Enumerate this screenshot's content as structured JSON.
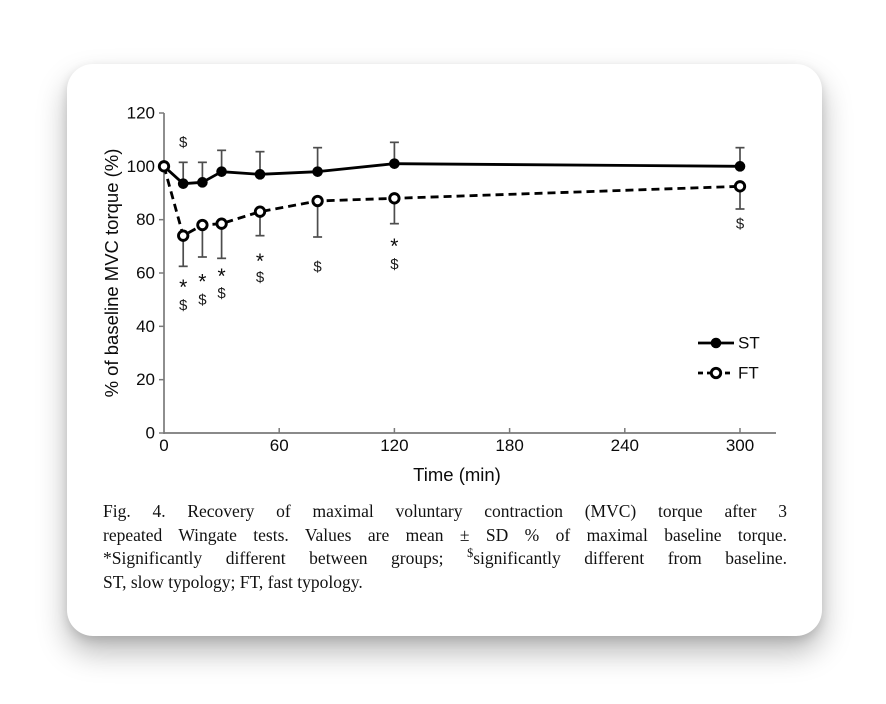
{
  "figure": {
    "caption": {
      "line1": "Fig. 4. Recovery of maximal voluntary contraction (MVC) torque after 3",
      "line2": "repeated Wingate tests. Values are mean ± SD % of maximal baseline torque.",
      "line3_pre": "*Significantly different between groups; ",
      "line3_sup": "$",
      "line3_post": "significantly different from baseline.",
      "line4": "ST, slow typology; FT, fast typology."
    }
  },
  "chart_data": {
    "type": "line",
    "title": "",
    "xlabel": "Time (min)",
    "ylabel": "% of baseline MVC torque (%)",
    "xlim": [
      0,
      320
    ],
    "ylim": [
      0,
      120
    ],
    "xticks": [
      0,
      60,
      120,
      180,
      240,
      300
    ],
    "yticks": [
      0,
      20,
      40,
      60,
      80,
      100,
      120
    ],
    "grid": false,
    "legend_position": "right-middle",
    "x": [
      0,
      10,
      20,
      30,
      50,
      80,
      120,
      300
    ],
    "series": [
      {
        "name": "ST",
        "line_style": "solid",
        "marker": "filled-circle",
        "values": [
          100,
          93.5,
          94,
          98,
          97,
          98,
          101,
          100
        ],
        "err_up": [
          0,
          8,
          7.5,
          8,
          8.5,
          9,
          8,
          7
        ],
        "err_down": [
          0,
          0,
          0,
          0,
          0,
          0,
          0,
          0
        ]
      },
      {
        "name": "FT",
        "line_style": "dashed",
        "marker": "open-circle",
        "values": [
          100,
          74,
          78,
          78.5,
          83,
          87,
          88,
          92.5
        ],
        "err_up": [
          0,
          0,
          0,
          0,
          0,
          0,
          0,
          0
        ],
        "err_down": [
          0,
          11.5,
          12,
          13,
          9,
          13.5,
          9.5,
          8.5
        ]
      }
    ],
    "annotations": [
      {
        "series": "ST",
        "x": 10,
        "side": "above",
        "symbols": [
          "$"
        ],
        "offsets": [
          -20
        ]
      },
      {
        "series": "FT",
        "x": 10,
        "side": "below",
        "symbols": [
          "*",
          "$"
        ],
        "offsets": [
          17,
          39
        ]
      },
      {
        "series": "FT",
        "x": 20,
        "side": "below",
        "symbols": [
          "*",
          "$"
        ],
        "offsets": [
          21,
          43
        ]
      },
      {
        "series": "FT",
        "x": 30,
        "side": "below",
        "symbols": [
          "*",
          "$"
        ],
        "offsets": [
          14,
          35
        ]
      },
      {
        "series": "FT",
        "x": 50,
        "side": "below",
        "symbols": [
          "*",
          "$"
        ],
        "offsets": [
          22,
          42
        ]
      },
      {
        "series": "FT",
        "x": 80,
        "side": "below",
        "symbols": [
          "$"
        ],
        "offsets": [
          30
        ]
      },
      {
        "series": "FT",
        "x": 120,
        "side": "below",
        "symbols": [
          "*",
          "$"
        ],
        "offsets": [
          19,
          41
        ]
      },
      {
        "series": "FT",
        "x": 300,
        "side": "below",
        "symbols": [
          "$"
        ],
        "offsets": [
          15
        ]
      }
    ],
    "colors": {
      "line": "#000000",
      "axis": "#7a7a7a",
      "error": "#4d4d4d",
      "text": "#000000",
      "background": "#ffffff"
    }
  }
}
